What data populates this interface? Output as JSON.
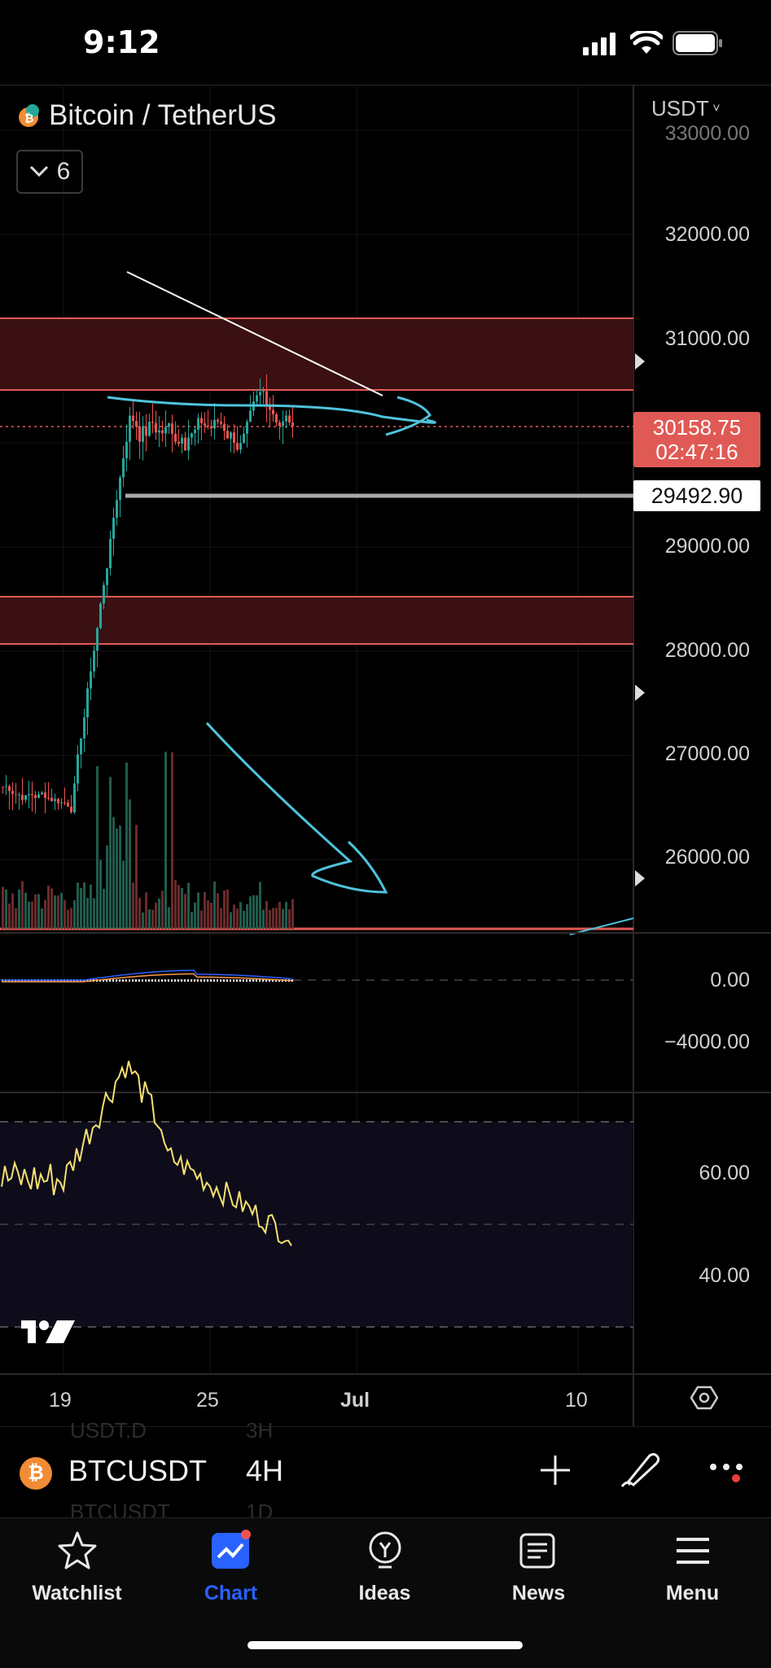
{
  "status": {
    "time": "9:12"
  },
  "header": {
    "symbol_title": "Bitcoin / TetherUS",
    "indicator_count": "6",
    "currency": "USDT"
  },
  "price_axis": [
    "33000.00",
    "32000.00",
    "31000.00",
    "29000.00",
    "28000.00",
    "27000.00",
    "26000.00"
  ],
  "last_price": {
    "price": "30158.75",
    "countdown": "02:47:16"
  },
  "line_price": "29492.90",
  "macd_axis": [
    "0.00",
    "−4000.00"
  ],
  "rsi_axis": [
    "60.00",
    "40.00"
  ],
  "time_axis": [
    "19",
    "25",
    "Jul",
    "10"
  ],
  "symbol_bar": {
    "symbol": "BTCUSDT",
    "interval": "4H",
    "ghost_above": {
      "symbol": "USDT.D",
      "interval": "3H"
    },
    "ghost_below": {
      "symbol": "BTCUSDT",
      "interval": "1D"
    }
  },
  "tabs": [
    {
      "label": "Watchlist",
      "icon": "star-icon"
    },
    {
      "label": "Chart",
      "icon": "chart-icon",
      "active": true
    },
    {
      "label": "Ideas",
      "icon": "lightbulb-icon"
    },
    {
      "label": "News",
      "icon": "news-icon"
    },
    {
      "label": "Menu",
      "icon": "menu-icon"
    }
  ],
  "colors": {
    "accent": "#2962ff",
    "up": "#26a69a",
    "down": "#ef5350",
    "zone": "#e05a55",
    "drawing": "#4fc3dc",
    "rsi": "#f5e070",
    "price_tag": "#e05a55"
  }
}
